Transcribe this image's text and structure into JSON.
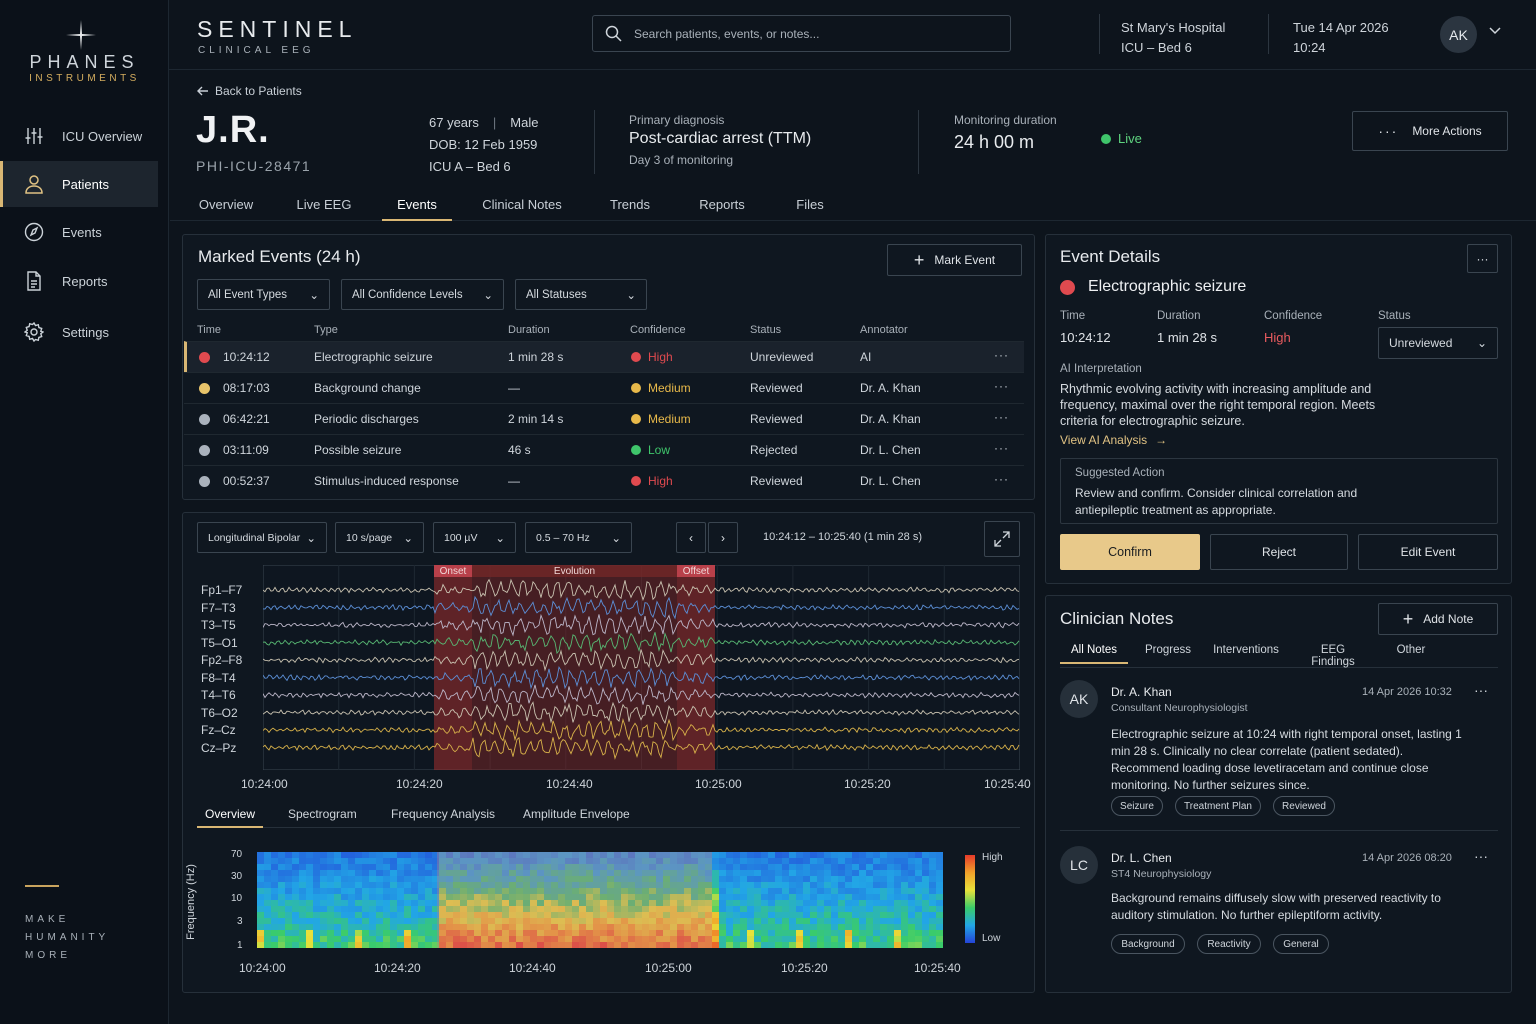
{
  "brand": {
    "name": "PHANES",
    "sub": "INSTRUMENTS",
    "tagline": [
      "MAKE",
      "HUMANITY",
      "MORE"
    ]
  },
  "nav": [
    {
      "label": "ICU Overview",
      "icon": "sliders-icon"
    },
    {
      "label": "Patients",
      "icon": "person-icon",
      "active": true
    },
    {
      "label": "Events",
      "icon": "compass-icon"
    },
    {
      "label": "Reports",
      "icon": "document-icon"
    },
    {
      "label": "Settings",
      "icon": "gear-icon"
    }
  ],
  "app": {
    "title": "SENTINEL",
    "subtitle": "CLINICAL EEG"
  },
  "search": {
    "placeholder": "Search patients, events, or notes..."
  },
  "location": {
    "hospital": "St Mary's Hospital",
    "unit": "ICU – Bed 6"
  },
  "datetime": {
    "date": "Tue 14 Apr 2026",
    "time": "10:24"
  },
  "user": {
    "initials": "AK"
  },
  "patient": {
    "back_label": "Back to Patients",
    "name": "J.R.",
    "id": "PHI-ICU-28471",
    "age": "67 years",
    "sex": "Male",
    "dob": "DOB: 12 Feb 1959",
    "bed": "ICU A – Bed 6",
    "diagnosis_label": "Primary diagnosis",
    "diagnosis": "Post-cardiac arrest (TTM)",
    "day": "Day 3 of monitoring",
    "monitoring_label": "Monitoring duration",
    "monitoring": "24 h 00 m",
    "status": "Live",
    "more_actions": "More Actions"
  },
  "tabs": [
    "Overview",
    "Live EEG",
    "Events",
    "Clinical Notes",
    "Trends",
    "Reports",
    "Files"
  ],
  "events": {
    "title": "Marked Events (24 h)",
    "mark_button": "Mark Event",
    "filters": [
      "All Event Types",
      "All Confidence Levels",
      "All Statuses"
    ],
    "columns": [
      "Time",
      "Type",
      "Duration",
      "Confidence",
      "Status",
      "Annotator"
    ],
    "rows": [
      {
        "time": "10:24:12",
        "type": "Electrographic seizure",
        "duration": "1 min 28 s",
        "confidence": "High",
        "status": "Unreviewed",
        "annotator": "AI",
        "dot": "#e04a4f",
        "conf_color": "#e04a4f"
      },
      {
        "time": "08:17:03",
        "type": "Background change",
        "duration": "—",
        "confidence": "Medium",
        "status": "Reviewed",
        "annotator": "Dr. A. Khan",
        "dot": "#e8c46a",
        "conf_color": "#e8b94a"
      },
      {
        "time": "06:42:21",
        "type": "Periodic discharges",
        "duration": "2 min 14 s",
        "confidence": "Medium",
        "status": "Reviewed",
        "annotator": "Dr. A. Khan",
        "dot": "#aab2bc",
        "conf_color": "#e8b94a"
      },
      {
        "time": "03:11:09",
        "type": "Possible seizure",
        "duration": "46 s",
        "confidence": "Low",
        "status": "Rejected",
        "annotator": "Dr. L. Chen",
        "dot": "#aab2bc",
        "conf_color": "#3fc56b"
      },
      {
        "time": "00:52:37",
        "type": "Stimulus-induced response",
        "duration": "—",
        "confidence": "High",
        "status": "Reviewed",
        "annotator": "Dr. L. Chen",
        "dot": "#aab2bc",
        "conf_color": "#e04a4f"
      }
    ]
  },
  "eeg": {
    "montage": "Longitudinal Bipolar",
    "page": "10 s/page",
    "gain": "100 µV",
    "filter": "0.5 – 70 Hz",
    "range": "10:24:12 – 10:25:40 (1 min 28 s)",
    "channels": [
      "Fp1–F7",
      "F7–T3",
      "T3–T5",
      "T5–O1",
      "Fp2–F8",
      "F8–T4",
      "T4–T6",
      "T6–O2",
      "Fz–Cz",
      "Cz–Pz"
    ],
    "channel_colors": [
      "#c9c2b0",
      "#5c8fd6",
      "#bcb6c8",
      "#58b873",
      "#c9c2b0",
      "#5c8fd6",
      "#bcb6c8",
      "#c9c2b0",
      "#d8b24a",
      "#d8b24a"
    ],
    "markers": [
      "Onset",
      "Evolution",
      "Offset"
    ],
    "time_ticks": [
      "10:24:00",
      "10:24:20",
      "10:24:40",
      "10:25:00",
      "10:25:20",
      "10:25:40"
    ],
    "subtabs": [
      "Overview",
      "Spectrogram",
      "Frequency Analysis",
      "Amplitude Envelope"
    ],
    "spec_ylabel": "Frequency (Hz)",
    "spec_yticks": [
      "70",
      "30",
      "10",
      "3",
      "1"
    ],
    "legend_high": "High",
    "legend_low": "Low"
  },
  "detail": {
    "title": "Event Details",
    "event": "Electrographic seizure",
    "time_label": "Time",
    "time": "10:24:12",
    "duration_label": "Duration",
    "duration": "1 min 28 s",
    "confidence_label": "Confidence",
    "confidence": "High",
    "status_label": "Status",
    "status": "Unreviewed",
    "ai_label": "AI Interpretation",
    "ai_text": "Rhythmic evolving activity with increasing amplitude and frequency, maximal over the right temporal region. Meets criteria for electrographic seizure.",
    "ai_link": "View AI Analysis",
    "suggested_label": "Suggested Action",
    "suggested_text": "Review and confirm. Consider clinical correlation and antiepileptic treatment as appropriate.",
    "confirm": "Confirm",
    "reject": "Reject",
    "edit": "Edit Event"
  },
  "notes": {
    "title": "Clinician Notes",
    "add": "Add Note",
    "tabs": [
      "All Notes",
      "Progress",
      "Interventions",
      "EEG Findings",
      "Other"
    ],
    "items": [
      {
        "initials": "AK",
        "author": "Dr. A. Khan",
        "role": "Consultant Neurophysiologist",
        "date": "14 Apr 2026 10:32",
        "text": "Electrographic seizure at 10:24 with right temporal onset, lasting 1 min 28 s. Clinically no clear correlate (patient sedated). Recommend loading dose levetiracetam and continue close monitoring. No further seizures since.",
        "tags": [
          "Seizure",
          "Treatment Plan",
          "Reviewed"
        ]
      },
      {
        "initials": "LC",
        "author": "Dr. L. Chen",
        "role": "ST4 Neurophysiology",
        "date": "14 Apr 2026 08:20",
        "text": "Background remains diffusely slow with preserved reactivity to auditory stimulation. No further epileptiform activity.",
        "tags": [
          "Background",
          "Reactivity",
          "General"
        ]
      }
    ]
  }
}
